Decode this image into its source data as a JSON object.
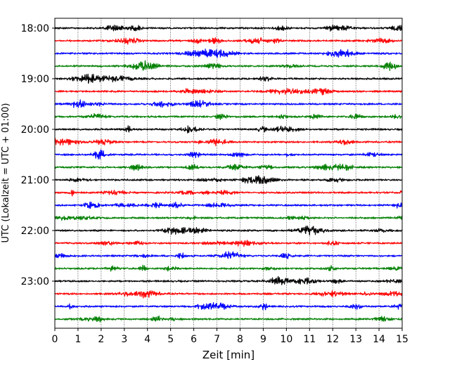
{
  "chart_data": {
    "type": "line",
    "title": "",
    "xlabel": "Zeit  [min]",
    "ylabel": "UTC (Lokalzeit = UTC + 01:00)",
    "xlim": [
      0,
      15
    ],
    "x_ticks": [
      "0",
      "1",
      "2",
      "3",
      "4",
      "5",
      "6",
      "7",
      "8",
      "9",
      "10",
      "11",
      "12",
      "13",
      "14",
      "15"
    ],
    "y_tick_labels": [
      "18:00",
      "19:00",
      "20:00",
      "21:00",
      "22:00",
      "23:00"
    ],
    "grid": "vertical dotted lines at every minute",
    "legend": "none",
    "trace_interval_minutes": 15,
    "start_time": "18:00",
    "trace_colors": [
      "#000000",
      "#ff0000",
      "#0000ff",
      "#007f00"
    ],
    "trace_labels": [
      "18:00",
      "18:15",
      "18:30",
      "18:45",
      "19:00",
      "19:15",
      "19:30",
      "19:45",
      "20:00",
      "20:15",
      "20:30",
      "20:45",
      "21:00",
      "21:15",
      "21:30",
      "21:45",
      "22:00",
      "22:15",
      "22:30",
      "22:45",
      "23:00",
      "23:15",
      "23:30",
      "23:45"
    ]
  }
}
